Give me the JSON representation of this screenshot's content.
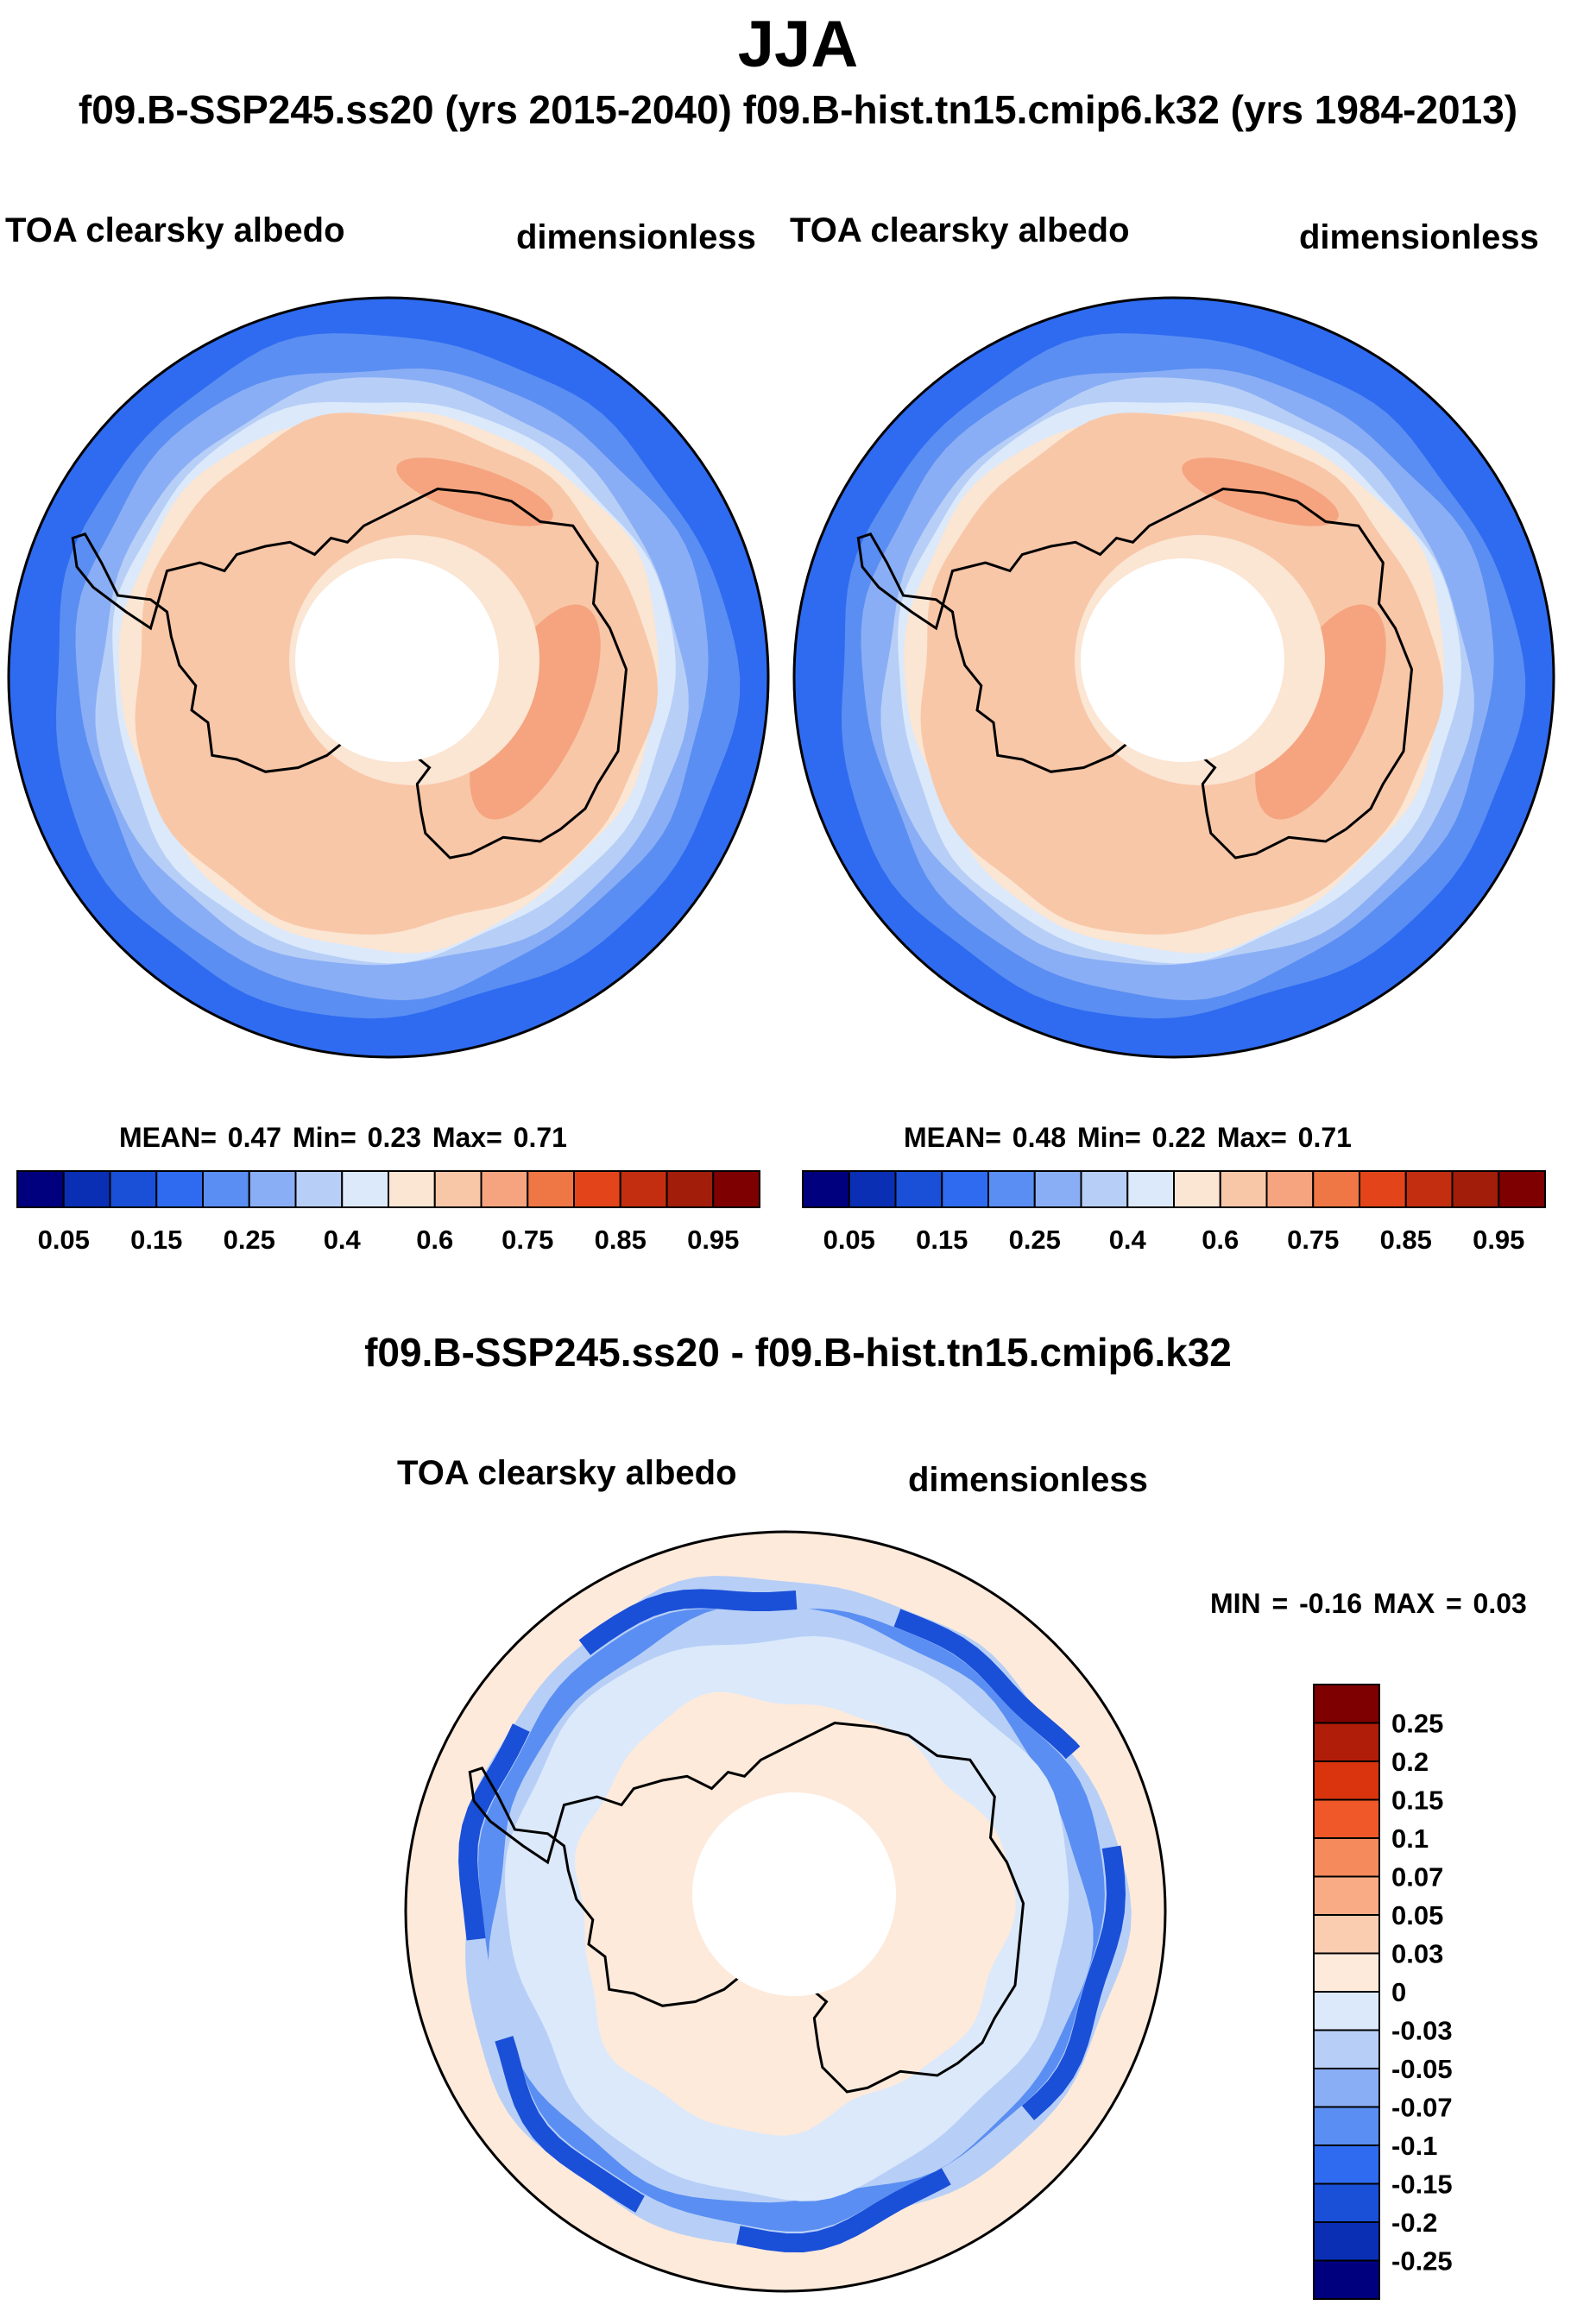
{
  "title": "JJA",
  "cases_header": "f09.B-SSP245.ss20 (yrs 2015-2040)  f09.B-hist.tn15.cmip6.k32 (yrs 1984-2013)",
  "diff_title": "f09.B-SSP245.ss20 - f09.B-hist.tn15.cmip6.k32",
  "icons": [
    "antarctica-coastline-icon"
  ],
  "chart_data": [
    {
      "type": "heatmap",
      "projection": "south-polar-stereographic",
      "variable": "TOA clearsky albedo",
      "units": "dimensionless",
      "stats_text": "MEAN=  0.47  Min=  0.23  Max=  0.71",
      "mean": 0.47,
      "min": 0.23,
      "max": 0.71,
      "colorbar_levels": [
        "0.05",
        "0.15",
        "0.25",
        "0.4",
        "0.6",
        "0.75",
        "0.85",
        "0.95"
      ],
      "colorbar_colors": [
        "#00007f",
        "#0a2fb5",
        "#1a4fd8",
        "#2f6bf0",
        "#5a8ef2",
        "#8aaef5",
        "#b7cff7",
        "#dbe9fb",
        "#fbe5d3",
        "#f8c7a8",
        "#f5a47f",
        "#ef7645",
        "#e4441a",
        "#c22e0f",
        "#a21d0a",
        "#7f0000"
      ]
    },
    {
      "type": "heatmap",
      "projection": "south-polar-stereographic",
      "variable": "TOA clearsky albedo",
      "units": "dimensionless",
      "stats_text": "MEAN=  0.48  Min=  0.22  Max=  0.71",
      "mean": 0.48,
      "min": 0.22,
      "max": 0.71,
      "colorbar_levels": [
        "0.05",
        "0.15",
        "0.25",
        "0.4",
        "0.6",
        "0.75",
        "0.85",
        "0.95"
      ],
      "colorbar_colors": [
        "#00007f",
        "#0a2fb5",
        "#1a4fd8",
        "#2f6bf0",
        "#5a8ef2",
        "#8aaef5",
        "#b7cff7",
        "#dbe9fb",
        "#fbe5d3",
        "#f8c7a8",
        "#f5a47f",
        "#ef7645",
        "#e4441a",
        "#c22e0f",
        "#a21d0a",
        "#7f0000"
      ]
    },
    {
      "type": "heatmap",
      "projection": "south-polar-stereographic",
      "variable": "TOA clearsky albedo",
      "units": "dimensionless",
      "minmax_text": "MIN =  -0.16 MAX =   0.03",
      "min": -0.16,
      "max": 0.03,
      "colorbar_levels": [
        "0.25",
        "0.2",
        "0.15",
        "0.1",
        "0.07",
        "0.05",
        "0.03",
        "0",
        "-0.03",
        "-0.05",
        "-0.07",
        "-0.1",
        "-0.15",
        "-0.2",
        "-0.25"
      ],
      "colorbar_colors": [
        "#7f0000",
        "#b01d08",
        "#d9340e",
        "#f0582a",
        "#f58a5c",
        "#f8ab85",
        "#fbcdb0",
        "#fdeadb",
        "#dbe9fb",
        "#b7cff7",
        "#8aaef5",
        "#5a8ef2",
        "#2f6bf0",
        "#1a4fd8",
        "#0a2fb5",
        "#00007f"
      ]
    }
  ]
}
